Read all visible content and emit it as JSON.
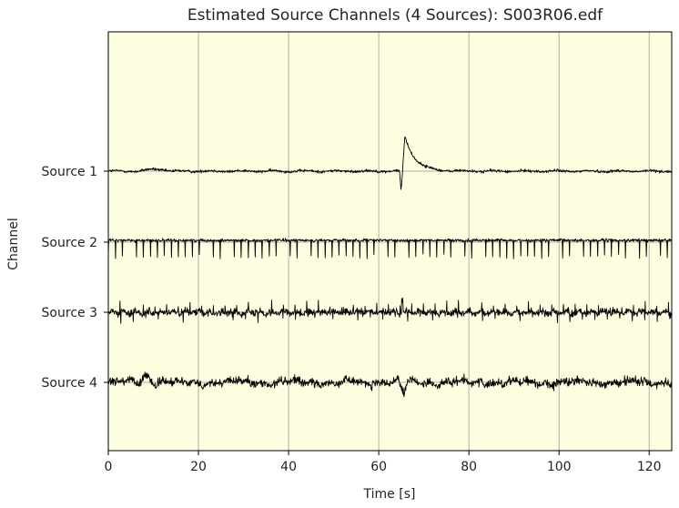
{
  "chart_data": {
    "type": "line",
    "title": "Estimated Source Channels (4 Sources): S003R06.edf",
    "xlabel": "Time [s]",
    "ylabel": "Channel",
    "xlim": [
      0,
      125
    ],
    "x_ticks": [
      0,
      20,
      40,
      60,
      80,
      100,
      120
    ],
    "x_tick_labels": [
      "0",
      "20",
      "40",
      "60",
      "80",
      "100",
      "120"
    ],
    "grid": true,
    "background_color": "#fdfde0",
    "trace_color": "#000000",
    "series": [
      {
        "name": "Source 1"
      },
      {
        "name": "Source 2"
      },
      {
        "name": "Source 3"
      },
      {
        "name": "Source 4"
      }
    ]
  }
}
